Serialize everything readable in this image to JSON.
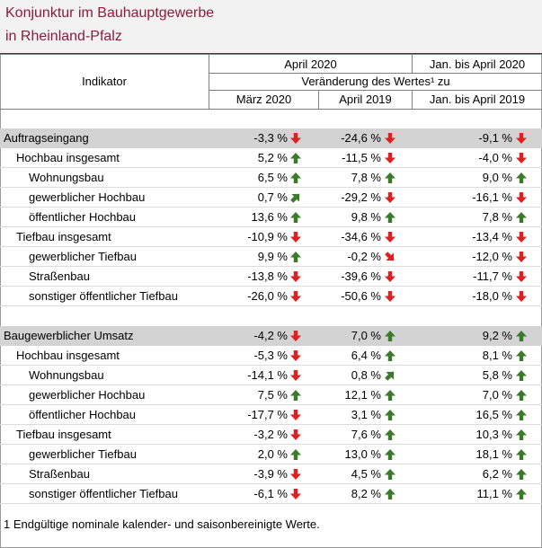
{
  "title": {
    "line1": "Konjunktur im Bauhauptgewerbe",
    "line2": "in Rheinland-Pfalz"
  },
  "header": {
    "indicator": "Indikator",
    "april_2020": "April 2020",
    "jan_april_2020": "Jan. bis April 2020",
    "change_label": "Veränderung des Wertes¹ zu",
    "col1": "März 2020",
    "col2": "April 2019",
    "col3": "Jan. bis April 2019"
  },
  "colors": {
    "up": "#3a7a2a",
    "down": "#e02020",
    "title": "#8b1c3a",
    "section": "#d3d3d3"
  },
  "rows": [
    {
      "label": "Auftragseingang",
      "level": 0,
      "section": true,
      "v1": "-3,3 %",
      "a1": "down",
      "v2": "-24,6 %",
      "a2": "down",
      "v3": "-9,1 %",
      "a3": "down"
    },
    {
      "label": "Hochbau insgesamt",
      "level": 1,
      "v1": "5,2 %",
      "a1": "up",
      "v2": "-11,5 %",
      "a2": "down",
      "v3": "-4,0 %",
      "a3": "down"
    },
    {
      "label": "Wohnungsbau",
      "level": 2,
      "v1": "6,5 %",
      "a1": "up",
      "v2": "7,8 %",
      "a2": "up",
      "v3": "9,0 %",
      "a3": "up"
    },
    {
      "label": "gewerblicher Hochbau",
      "level": 2,
      "v1": "0,7 %",
      "a1": "upright",
      "v2": "-29,2 %",
      "a2": "down",
      "v3": "-16,1 %",
      "a3": "down"
    },
    {
      "label": "öffentlicher Hochbau",
      "level": 2,
      "v1": "13,6 %",
      "a1": "up",
      "v2": "9,8 %",
      "a2": "up",
      "v3": "7,8 %",
      "a3": "up"
    },
    {
      "label": "Tiefbau insgesamt",
      "level": 1,
      "v1": "-10,9 %",
      "a1": "down",
      "v2": "-34,6 %",
      "a2": "down",
      "v3": "-13,4 %",
      "a3": "down"
    },
    {
      "label": "gewerblicher Tiefbau",
      "level": 2,
      "v1": "9,9 %",
      "a1": "up",
      "v2": "-0,2 %",
      "a2": "downright",
      "v3": "-12,0 %",
      "a3": "down"
    },
    {
      "label": "Straßenbau",
      "level": 2,
      "v1": "-13,8 %",
      "a1": "down",
      "v2": "-39,6 %",
      "a2": "down",
      "v3": "-11,7 %",
      "a3": "down"
    },
    {
      "label": "sonstiger öffentlicher Tiefbau",
      "level": 2,
      "v1": "-26,0 %",
      "a1": "down",
      "v2": "-50,6 %",
      "a2": "down",
      "v3": "-18,0 %",
      "a3": "down"
    },
    {
      "label": "Baugewerblicher Umsatz",
      "level": 0,
      "section": true,
      "gap": true,
      "v1": "-4,2 %",
      "a1": "down",
      "v2": "7,0 %",
      "a2": "up",
      "v3": "9,2 %",
      "a3": "up"
    },
    {
      "label": "Hochbau insgesamt",
      "level": 1,
      "v1": "-5,3 %",
      "a1": "down",
      "v2": "6,4 %",
      "a2": "up",
      "v3": "8,1 %",
      "a3": "up"
    },
    {
      "label": "Wohnungsbau",
      "level": 2,
      "v1": "-14,1 %",
      "a1": "down",
      "v2": "0,8 %",
      "a2": "upright",
      "v3": "5,8 %",
      "a3": "up"
    },
    {
      "label": "gewerblicher Hochbau",
      "level": 2,
      "v1": "7,5 %",
      "a1": "up",
      "v2": "12,1 %",
      "a2": "up",
      "v3": "7,0 %",
      "a3": "up"
    },
    {
      "label": "öffentlicher Hochbau",
      "level": 2,
      "v1": "-17,7 %",
      "a1": "down",
      "v2": "3,1 %",
      "a2": "up",
      "v3": "16,5 %",
      "a3": "up"
    },
    {
      "label": "Tiefbau insgesamt",
      "level": 1,
      "v1": "-3,2 %",
      "a1": "down",
      "v2": "7,6 %",
      "a2": "up",
      "v3": "10,3 %",
      "a3": "up"
    },
    {
      "label": "gewerblicher Tiefbau",
      "level": 2,
      "v1": "2,0 %",
      "a1": "up",
      "v2": "13,0 %",
      "a2": "up",
      "v3": "18,1 %",
      "a3": "up"
    },
    {
      "label": "Straßenbau",
      "level": 2,
      "v1": "-3,9 %",
      "a1": "down",
      "v2": "4,5 %",
      "a2": "up",
      "v3": "6,2 %",
      "a3": "up"
    },
    {
      "label": "sonstiger öffentlicher Tiefbau",
      "level": 2,
      "v1": "-6,1 %",
      "a1": "down",
      "v2": "8,2 %",
      "a2": "up",
      "v3": "11,1 %",
      "a3": "up"
    }
  ],
  "footnote": "1 Endgültige nominale kalender- und saisonbereinigte Werte."
}
